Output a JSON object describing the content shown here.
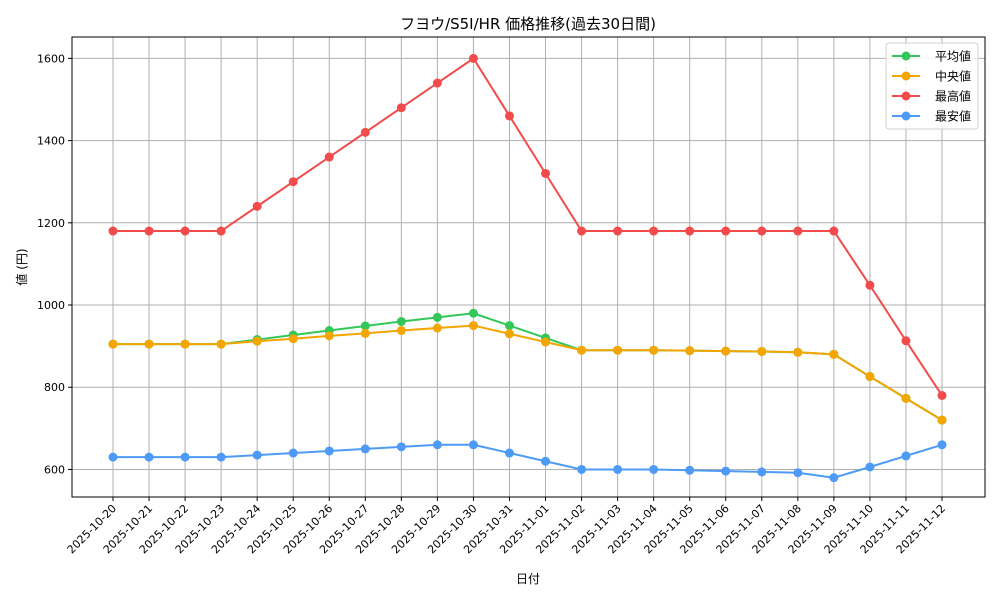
{
  "chart_data": {
    "type": "line",
    "title": "フヨウ/S5I/HR 価格推移(過去30日間)",
    "xlabel": "日付",
    "ylabel": "値 (円)",
    "ylim": [
      533,
      1652
    ],
    "yticks": [
      600,
      800,
      1000,
      1200,
      1400,
      1600
    ],
    "grid": true,
    "legend_position": "upper right",
    "categories": [
      "2025-10-20",
      "2025-10-21",
      "2025-10-22",
      "2025-10-23",
      "2025-10-24",
      "2025-10-25",
      "2025-10-26",
      "2025-10-27",
      "2025-10-28",
      "2025-10-29",
      "2025-10-30",
      "2025-10-31",
      "2025-11-01",
      "2025-11-02",
      "2025-11-03",
      "2025-11-04",
      "2025-11-05",
      "2025-11-06",
      "2025-11-07",
      "2025-11-08",
      "2025-11-09",
      "2025-11-10",
      "2025-11-11",
      "2025-11-12"
    ],
    "series": [
      {
        "name": "平均値",
        "color": "#33c75a",
        "values": [
          905,
          905,
          905,
          905,
          916,
          927,
          938,
          949,
          960,
          970,
          980,
          950,
          920,
          890,
          890,
          890,
          889,
          888,
          887,
          885,
          880,
          826,
          773,
          720
        ]
      },
      {
        "name": "中央値",
        "color": "#f5a500",
        "values": [
          905,
          905,
          905,
          905,
          912,
          918,
          925,
          931,
          938,
          944,
          950,
          930,
          910,
          890,
          890,
          890,
          889,
          888,
          887,
          885,
          880,
          826,
          773,
          720
        ]
      },
      {
        "name": "最高値",
        "color": "#f24b4b",
        "values": [
          1180,
          1180,
          1180,
          1180,
          1240,
          1300,
          1360,
          1420,
          1480,
          1540,
          1600,
          1460,
          1320,
          1180,
          1180,
          1180,
          1180,
          1180,
          1180,
          1180,
          1180,
          1048,
          913,
          780
        ]
      },
      {
        "name": "最安値",
        "color": "#4d9bf7",
        "values": [
          630,
          630,
          630,
          630,
          635,
          640,
          645,
          650,
          655,
          660,
          660,
          640,
          620,
          600,
          600,
          600,
          598,
          596,
          594,
          592,
          580,
          606,
          633,
          660
        ]
      }
    ]
  }
}
